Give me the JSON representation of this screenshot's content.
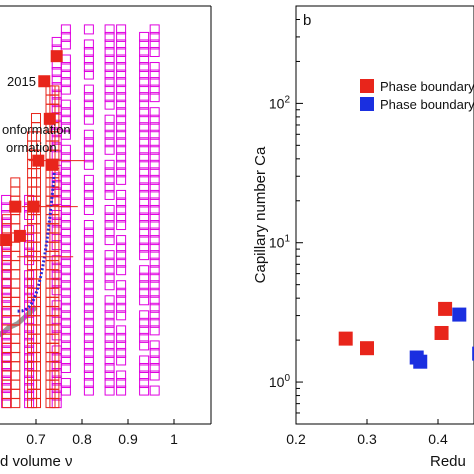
{
  "chart_data": [
    {
      "type": "scatter",
      "xlabel": "d volume ν",
      "xticks": [
        "0.6",
        "0.7",
        "0.8",
        "0.9",
        "1"
      ],
      "xlim": [
        0.55,
        1.0
      ],
      "ylim": [
        0,
        1
      ],
      "legend_entries": [
        "2015",
        "onformation",
        "ormation"
      ],
      "series": [
        {
          "marker": "open-square-magenta",
          "color": "#e000e0",
          "columns": [
            0.635,
            0.685,
            0.745,
            0.765,
            0.815,
            0.86,
            0.885,
            0.935,
            0.958
          ]
        },
        {
          "marker": "open-square-red",
          "color": "#e8251b",
          "columns": [
            0.56,
            0.585,
            0.6,
            0.63,
            0.655,
            0.685,
            0.7,
            0.725,
            0.74
          ]
        },
        {
          "marker": "filled-square-red",
          "color": "#e8251b",
          "x": [
            0.57,
            0.635,
            0.655,
            0.665,
            0.695,
            0.705,
            0.718,
            0.73,
            0.735,
            0.745
          ],
          "y": [
            0.34,
            0.44,
            0.52,
            0.45,
            0.52,
            0.63,
            0.82,
            0.73,
            0.62,
            0.88
          ]
        }
      ]
    },
    {
      "type": "scatter",
      "panel_label": "b",
      "ylabel": "Capillary number Ca",
      "xlabel": "Redu",
      "xticks": [
        "0.2",
        "0.3",
        "0.4"
      ],
      "xlim": [
        0.2,
        0.46
      ],
      "yscale": "log",
      "ylim": [
        0.5,
        500
      ],
      "yticks": [
        "10^0",
        "10^1",
        "10^2"
      ],
      "legend": [
        {
          "label": "Phase boundary",
          "color": "#e8251b"
        },
        {
          "label": "Phase boundary",
          "color": "#1a2fe0"
        }
      ],
      "series": [
        {
          "color": "#e8251b",
          "x": [
            0.27,
            0.3,
            0.405,
            0.41
          ],
          "y": [
            2.05,
            1.75,
            2.25,
            3.35
          ]
        },
        {
          "color": "#1a2fe0",
          "x": [
            0.37,
            0.375,
            0.43,
            0.458
          ],
          "y": [
            1.5,
            1.4,
            3.05,
            1.6
          ]
        }
      ]
    }
  ],
  "colors": {
    "red": "#e8251b",
    "blue": "#1a2fe0",
    "magenta": "#e000e0",
    "fit_line": "#2a2ad8",
    "gray_curve": "#999999"
  }
}
